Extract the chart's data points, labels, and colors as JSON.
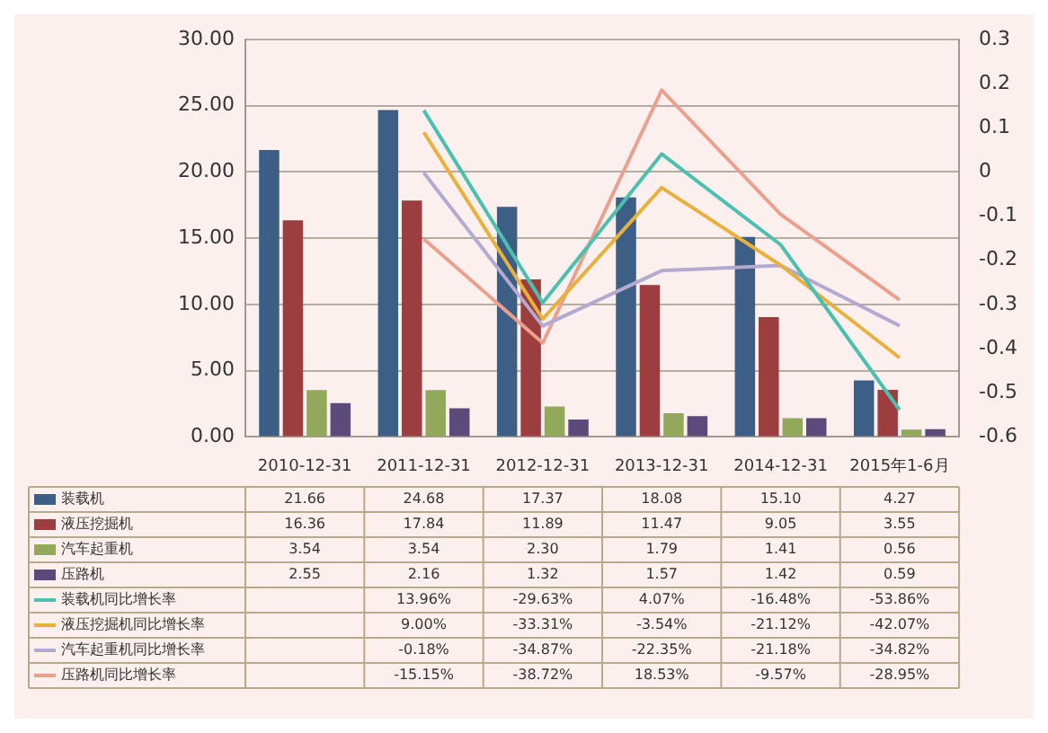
{
  "chart_data": {
    "type": "bar",
    "categories": [
      "2010-12-31",
      "2011-12-31",
      "2012-12-31",
      "2013-12-31",
      "2014-12-31",
      "2015年1-6月"
    ],
    "series": [
      {
        "name": "装载机",
        "color": "#3d5f85",
        "values": [
          21.66,
          24.68,
          17.37,
          18.08,
          15.1,
          4.27
        ],
        "value_labels": [
          "21.66",
          "24.68",
          "17.37",
          "18.08",
          "15.10",
          "4.27"
        ]
      },
      {
        "name": "液压挖掘机",
        "color": "#9c3d40",
        "values": [
          16.36,
          17.84,
          11.89,
          11.47,
          9.05,
          3.55
        ],
        "value_labels": [
          "16.36",
          "17.84",
          "11.89",
          "11.47",
          "9.05",
          "3.55"
        ]
      },
      {
        "name": "汽车起重机",
        "color": "#92a95c",
        "values": [
          3.54,
          3.54,
          2.3,
          1.79,
          1.41,
          0.56
        ],
        "value_labels": [
          "3.54",
          "3.54",
          "2.30",
          "1.79",
          "1.41",
          "0.56"
        ]
      },
      {
        "name": "压路机",
        "color": "#5c4a7a",
        "values": [
          2.55,
          2.16,
          1.32,
          1.57,
          1.42,
          0.59
        ],
        "value_labels": [
          "2.55",
          "2.16",
          "1.32",
          "1.57",
          "1.42",
          "0.59"
        ]
      },
      {
        "name": "装载机同比增长率",
        "type": "line",
        "axis": "y2",
        "color": "#4cbfae",
        "values": [
          null,
          0.1396,
          -0.2963,
          0.0407,
          -0.1648,
          -0.5386
        ],
        "value_labels": [
          null,
          "13.96%",
          "-29.63%",
          "4.07%",
          "-16.48%",
          "-53.86%"
        ]
      },
      {
        "name": "液压挖掘机同比增长率",
        "type": "line",
        "axis": "y2",
        "color": "#e8b03c",
        "values": [
          null,
          0.09,
          -0.3331,
          -0.0354,
          -0.2112,
          -0.4207
        ],
        "value_labels": [
          null,
          "9.00%",
          "-33.31%",
          "-3.54%",
          "-21.12%",
          "-42.07%"
        ]
      },
      {
        "name": "汽车起重机同比增长率",
        "type": "line",
        "axis": "y2",
        "color": "#b3aacf",
        "values": [
          null,
          -0.0018,
          -0.3487,
          -0.2235,
          -0.2118,
          -0.3482
        ],
        "value_labels": [
          null,
          "-0.18%",
          "-34.87%",
          "-22.35%",
          "-21.18%",
          "-34.82%"
        ]
      },
      {
        "name": "压路机同比增长率",
        "type": "line",
        "axis": "y2",
        "color": "#eba08e",
        "values": [
          null,
          -0.1515,
          -0.3872,
          0.1853,
          -0.0957,
          -0.2895
        ],
        "value_labels": [
          null,
          "-15.15%",
          "-38.72%",
          "18.53%",
          "-9.57%",
          "-28.95%"
        ]
      }
    ],
    "ylim": [
      0,
      30
    ],
    "yticks": [
      {
        "value": 0,
        "label": "0.00"
      },
      {
        "value": 5,
        "label": "5.00"
      },
      {
        "value": 10,
        "label": "10.00"
      },
      {
        "value": 15,
        "label": "15.00"
      },
      {
        "value": 20,
        "label": "20.00"
      },
      {
        "value": 25,
        "label": "25.00"
      },
      {
        "value": 30,
        "label": "30.00"
      }
    ],
    "y2lim": [
      -0.6,
      0.3
    ],
    "y2ticks": [
      -0.6,
      -0.5,
      -0.4,
      -0.3,
      -0.2,
      -0.1,
      0,
      0.1,
      0.2,
      0.3
    ],
    "grid": "y",
    "legend": "bottom",
    "marker": "none",
    "line_style": "solid"
  }
}
